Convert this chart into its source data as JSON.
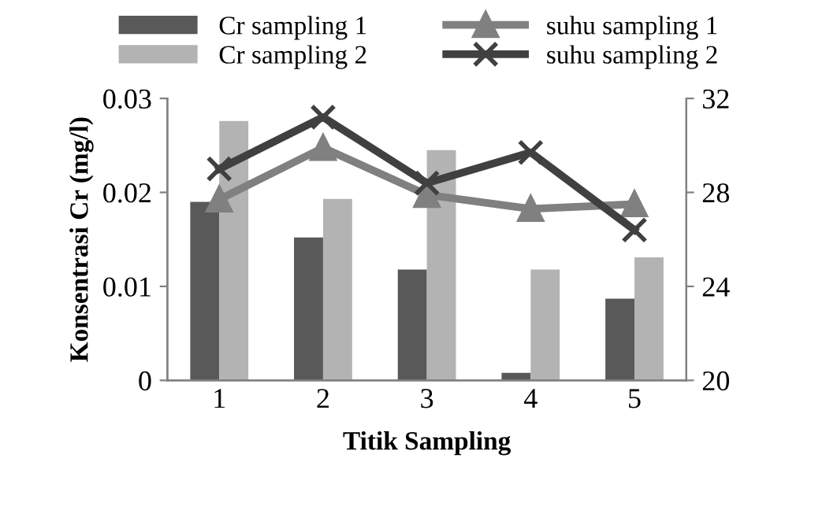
{
  "chart_data": {
    "type": "bar",
    "xlabel": "Titik Sampling",
    "ylabel": "Konsentrasi Cr (mg/l)",
    "categories": [
      "1",
      "2",
      "3",
      "4",
      "5"
    ],
    "series": [
      {
        "name": "Cr sampling 1",
        "color": "#595959",
        "values": [
          0.019,
          0.0152,
          0.0118,
          0.0008,
          0.0087
        ]
      },
      {
        "name": "Cr sampling 2",
        "color": "#b3b3b3",
        "values": [
          0.0276,
          0.0193,
          0.0245,
          0.0118,
          0.0131
        ]
      },
      {
        "name": "suhu sampling 1",
        "type": "line",
        "axis": "y2",
        "marker": "triangle",
        "color": "#808080",
        "values": [
          27.7,
          29.9,
          27.9,
          27.3,
          27.5
        ]
      },
      {
        "name": "suhu sampling 2",
        "type": "line",
        "axis": "y2",
        "marker": "cross",
        "color": "#404040",
        "values": [
          29.0,
          31.2,
          28.4,
          29.7,
          26.4
        ]
      }
    ],
    "ylim": [
      0,
      0.03
    ],
    "yticks": [
      0,
      0.01,
      0.02,
      0.03
    ],
    "y2lim": [
      20,
      32
    ],
    "y2ticks": [
      20,
      24,
      28,
      32
    ],
    "legend": "top",
    "grid": false
  }
}
